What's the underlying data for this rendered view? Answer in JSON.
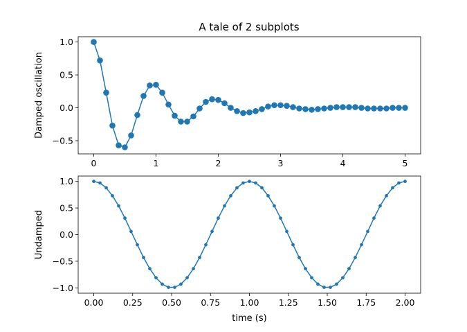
{
  "figure": {
    "title": "A tale of 2 subplots"
  },
  "chart_data": [
    {
      "type": "line",
      "title": "A tale of 2 subplots",
      "xlabel": "",
      "ylabel": "Damped oscillation",
      "xlim": [
        -0.25,
        5.25
      ],
      "ylim": [
        -0.7,
        1.08
      ],
      "xticks": [
        0,
        1,
        2,
        3,
        4,
        5
      ],
      "yticks": [
        -0.5,
        0.0,
        0.5,
        1.0
      ],
      "xtick_labels": [
        "0",
        "1",
        "2",
        "3",
        "4",
        "5"
      ],
      "ytick_labels": [
        "−0.5",
        "0.0",
        "0.5",
        "1.0"
      ],
      "marker": "circle",
      "color": "#1f77b4",
      "grid": false,
      "series": [
        {
          "x": [
            0.0,
            0.1,
            0.2,
            0.3,
            0.4,
            0.5,
            0.6,
            0.7,
            0.8,
            0.9,
            1.0,
            1.1,
            1.2,
            1.3,
            1.4,
            1.5,
            1.6,
            1.7,
            1.8,
            1.9,
            2.0,
            2.1,
            2.2,
            2.3,
            2.4,
            2.5,
            2.6,
            2.7,
            2.8,
            2.9,
            3.0,
            3.1,
            3.2,
            3.3,
            3.4,
            3.5,
            3.6,
            3.7,
            3.8,
            3.9,
            4.0,
            4.1,
            4.2,
            4.3,
            4.4,
            4.5,
            4.6,
            4.7,
            4.8,
            4.9,
            5.0
          ],
          "y": [
            1.0,
            0.72,
            0.23,
            -0.27,
            -0.57,
            -0.6,
            -0.42,
            -0.11,
            0.18,
            0.34,
            0.35,
            0.23,
            0.05,
            -0.12,
            -0.21,
            -0.21,
            -0.13,
            -0.01,
            0.09,
            0.13,
            0.12,
            0.07,
            0.0,
            -0.05,
            -0.08,
            -0.07,
            -0.05,
            -0.02,
            0.02,
            0.04,
            0.04,
            0.03,
            0.01,
            -0.01,
            -0.02,
            -0.03,
            -0.02,
            -0.01,
            0.0,
            0.01,
            0.01,
            0.01,
            0.01,
            0.0,
            -0.01,
            -0.01,
            -0.01,
            -0.01,
            0.0,
            0.0,
            0.0
          ]
        }
      ]
    },
    {
      "type": "line",
      "title": "",
      "xlabel": "time (s)",
      "ylabel": "Undamped",
      "xlim": [
        -0.1,
        2.1
      ],
      "ylim": [
        -1.1,
        1.1
      ],
      "xticks": [
        0.0,
        0.25,
        0.5,
        0.75,
        1.0,
        1.25,
        1.5,
        1.75,
        2.0
      ],
      "yticks": [
        -1.0,
        -0.5,
        0.0,
        0.5,
        1.0
      ],
      "xtick_labels": [
        "0.00",
        "0.25",
        "0.50",
        "0.75",
        "1.00",
        "1.25",
        "1.50",
        "1.75",
        "2.00"
      ],
      "ytick_labels": [
        "−1.0",
        "−0.5",
        "0.0",
        "0.5",
        "1.0"
      ],
      "marker": "point",
      "color": "#1f77b4",
      "grid": false,
      "series": [
        {
          "x": [
            0.0,
            0.04,
            0.08,
            0.12,
            0.16,
            0.2,
            0.24,
            0.28,
            0.32,
            0.36,
            0.4,
            0.44,
            0.48,
            0.52,
            0.56,
            0.6,
            0.64,
            0.68,
            0.72,
            0.76,
            0.8,
            0.84,
            0.88,
            0.92,
            0.96,
            1.0,
            1.04,
            1.08,
            1.12,
            1.16,
            1.2,
            1.24,
            1.28,
            1.32,
            1.36,
            1.4,
            1.44,
            1.48,
            1.52,
            1.56,
            1.6,
            1.64,
            1.68,
            1.72,
            1.76,
            1.8,
            1.84,
            1.88,
            1.92,
            1.96,
            2.0
          ],
          "y": [
            1.0,
            0.97,
            0.88,
            0.73,
            0.54,
            0.31,
            0.06,
            -0.19,
            -0.43,
            -0.64,
            -0.81,
            -0.93,
            -0.99,
            -0.99,
            -0.93,
            -0.81,
            -0.64,
            -0.43,
            -0.19,
            0.06,
            0.31,
            0.54,
            0.73,
            0.88,
            0.97,
            1.0,
            0.97,
            0.88,
            0.73,
            0.54,
            0.31,
            0.06,
            -0.19,
            -0.43,
            -0.64,
            -0.81,
            -0.93,
            -0.99,
            -0.99,
            -0.93,
            -0.81,
            -0.64,
            -0.43,
            -0.19,
            0.06,
            0.31,
            0.54,
            0.73,
            0.88,
            0.97,
            1.0
          ]
        }
      ]
    }
  ]
}
